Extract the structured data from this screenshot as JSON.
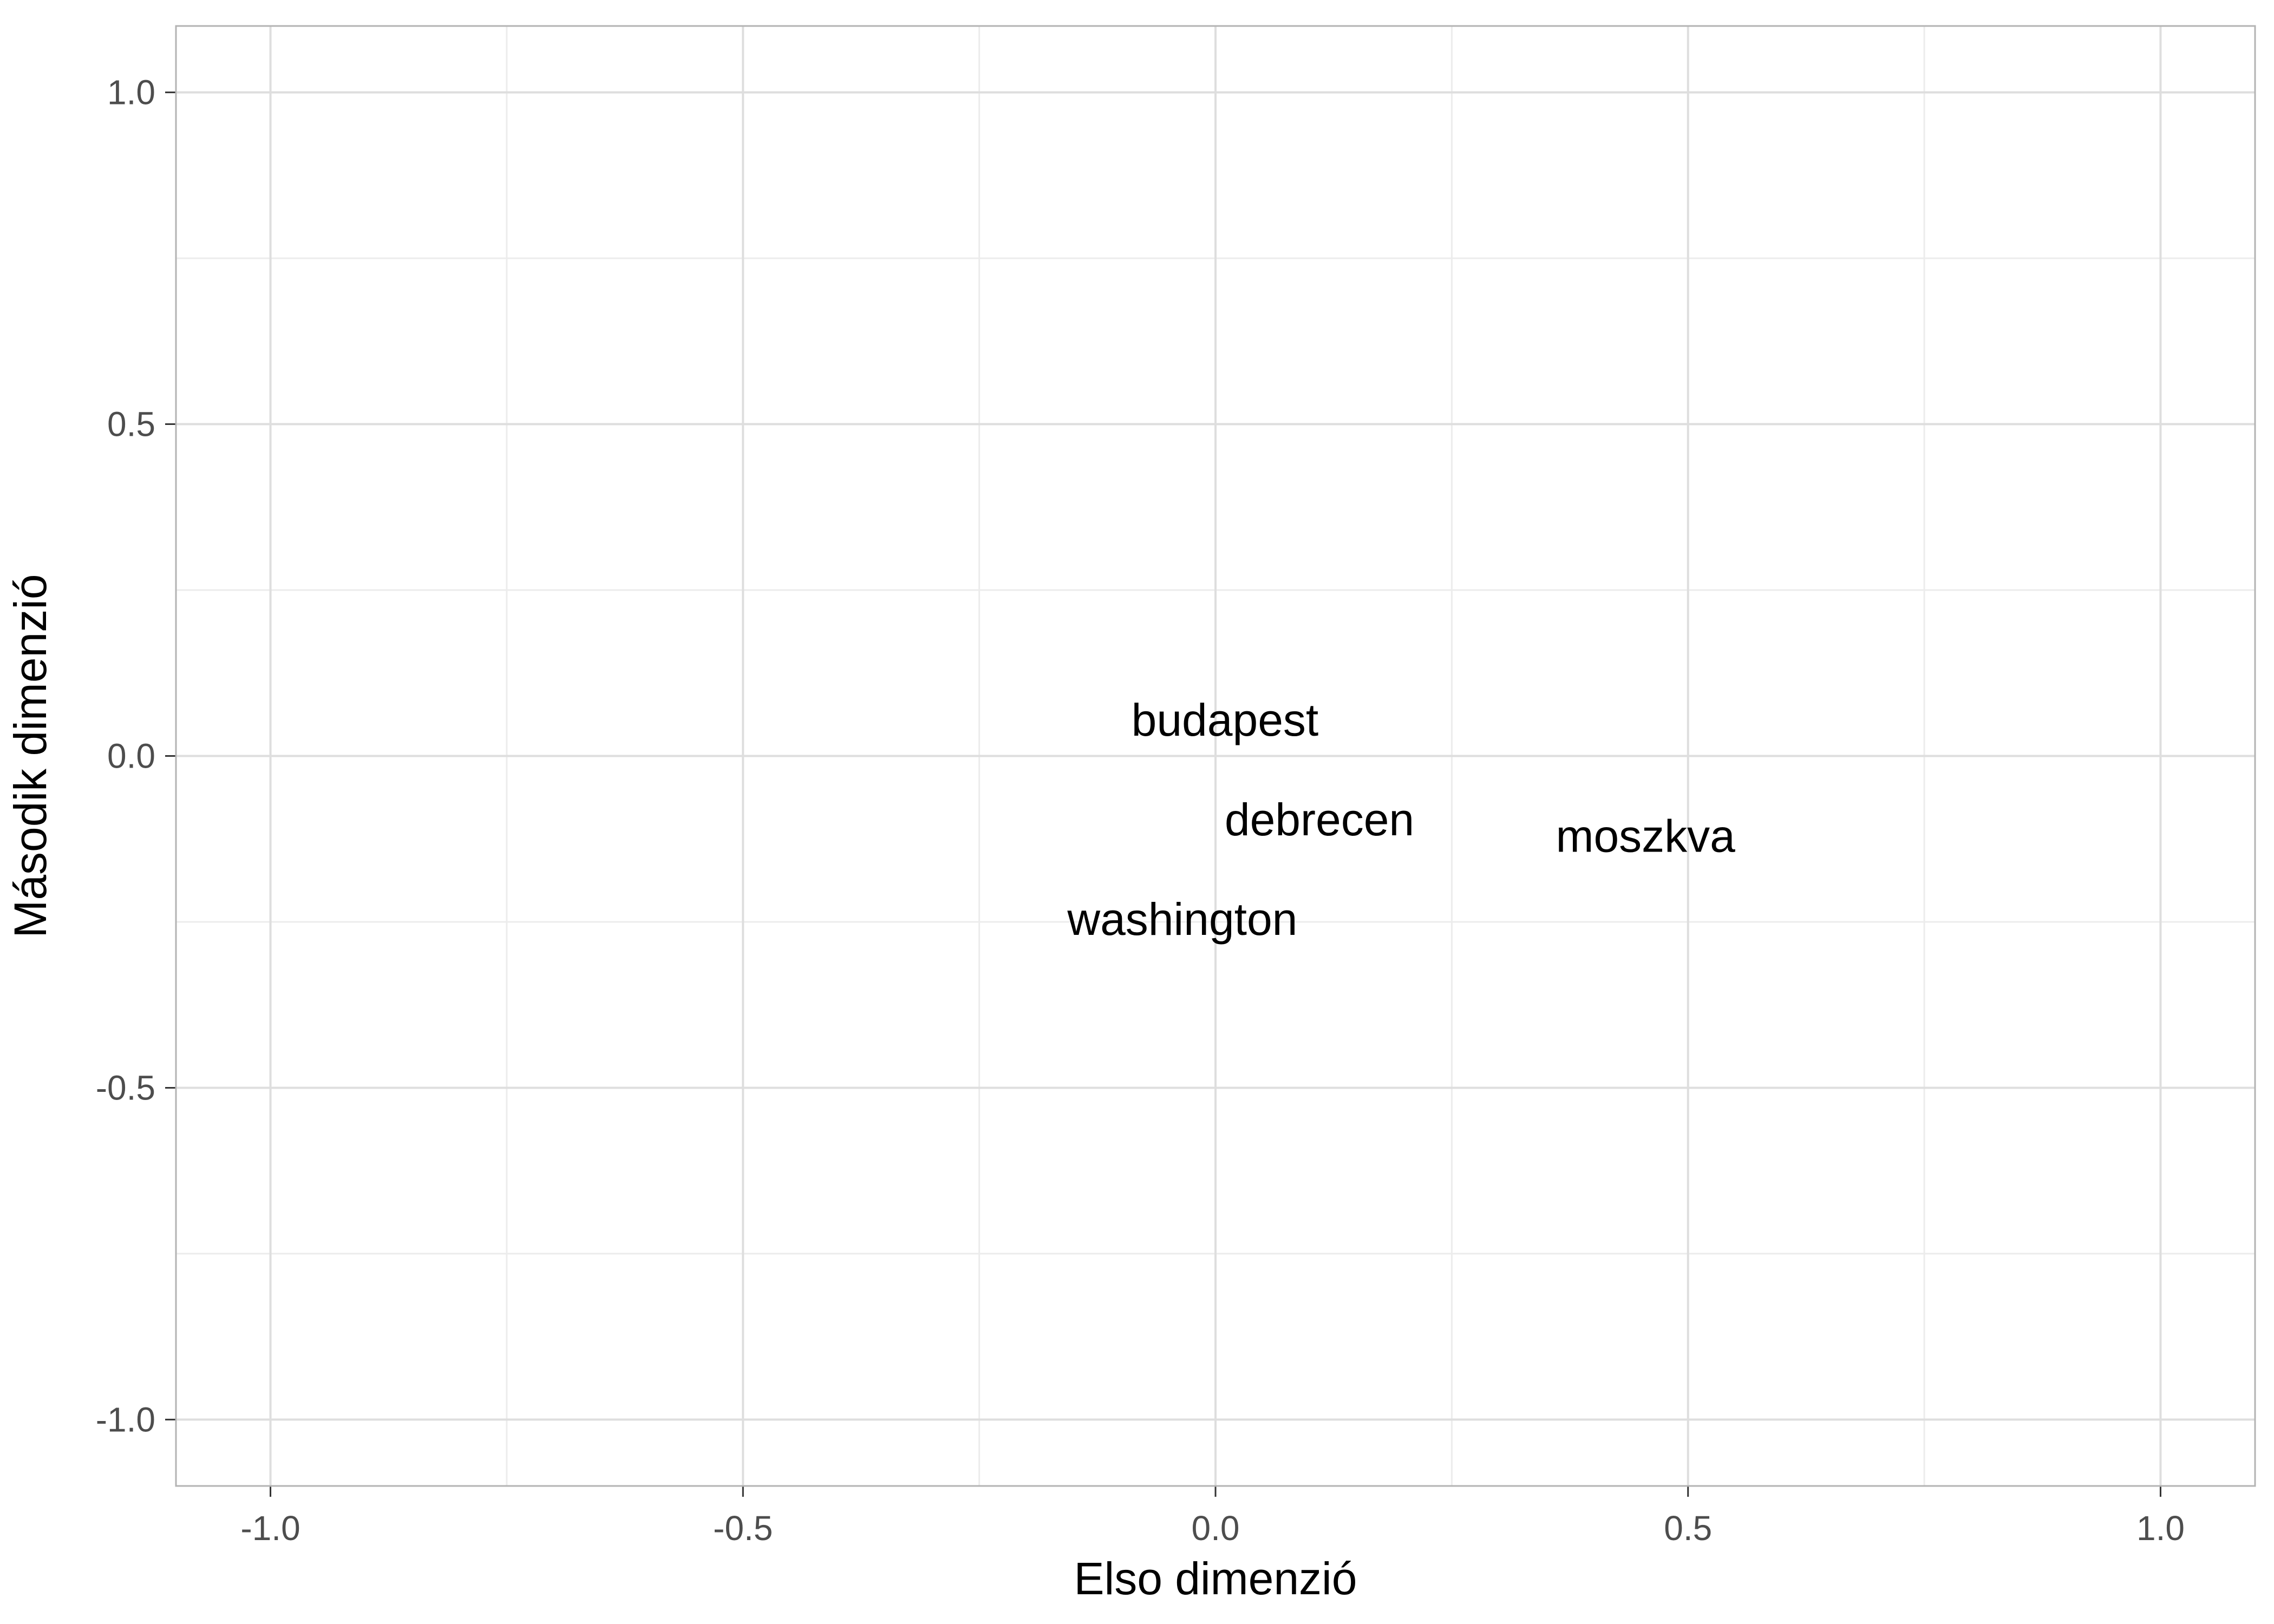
{
  "chart_data": {
    "type": "scatter",
    "title": "",
    "xlabel": "Elso dimenzió",
    "ylabel": "Második dimenzió",
    "xlim": [
      -1.1,
      1.1
    ],
    "ylim": [
      -1.1,
      1.1
    ],
    "x_ticks": [
      -1.0,
      -0.5,
      0.0,
      0.5,
      1.0
    ],
    "x_tick_labels": [
      "-1.0",
      "-0.5",
      "0.0",
      "0.5",
      "1.0"
    ],
    "y_ticks": [
      -1.0,
      -0.5,
      0.0,
      0.5,
      1.0
    ],
    "y_tick_labels": [
      "-1.0",
      "-0.5",
      "0.0",
      "0.5",
      "1.0"
    ],
    "x_minor_ticks": [
      -0.75,
      -0.25,
      0.25,
      0.75
    ],
    "y_minor_ticks": [
      -0.75,
      -0.25,
      0.25,
      0.75
    ],
    "grid": true,
    "points": [
      {
        "label": "budapest",
        "x": 0.01,
        "y": 0.055
      },
      {
        "label": "debrecen",
        "x": 0.11,
        "y": -0.095
      },
      {
        "label": "moszkva",
        "x": 0.455,
        "y": -0.12
      },
      {
        "label": "washington",
        "x": -0.035,
        "y": -0.245
      }
    ]
  },
  "colors": {
    "background": "#ffffff",
    "panel_border": "#b3b3b3",
    "grid_major": "#dedede",
    "grid_minor": "#ececec",
    "tick_label": "#4d4d4d",
    "text": "#000000"
  }
}
